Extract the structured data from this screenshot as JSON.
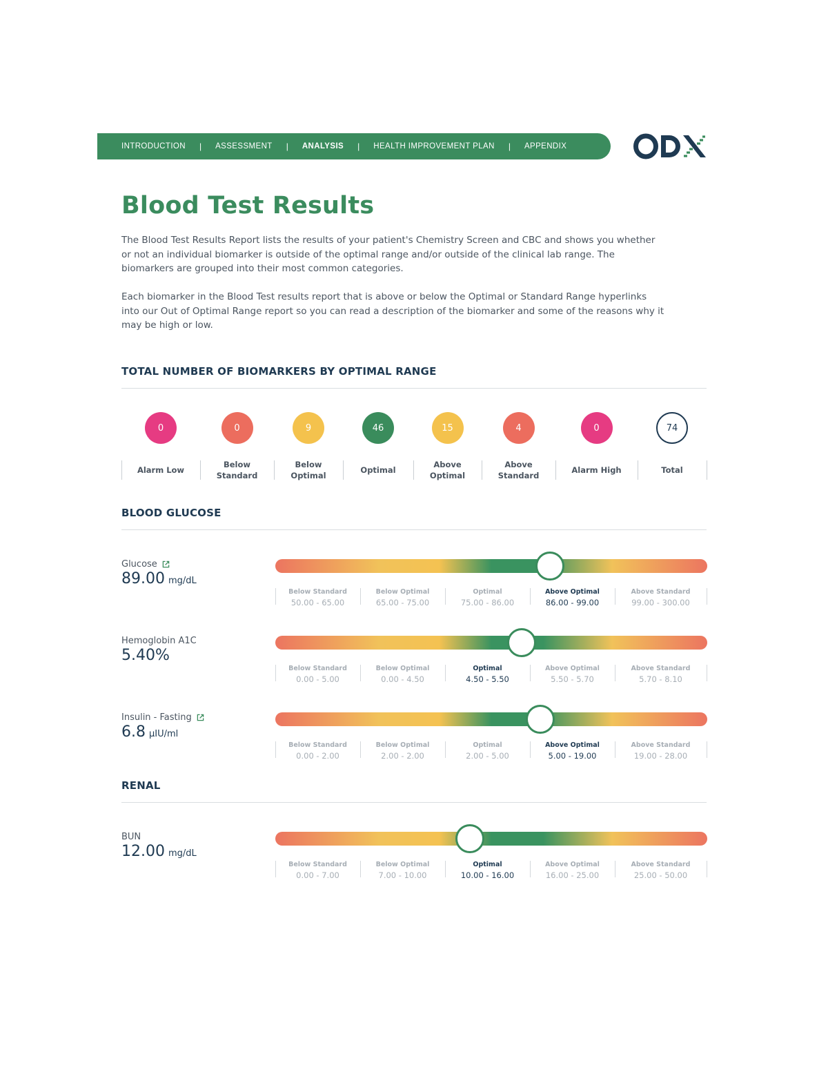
{
  "nav": {
    "items": [
      "INTRODUCTION",
      "ASSESSMENT",
      "ANALYSIS",
      "HEALTH IMPROVEMENT PLAN",
      "APPENDIX"
    ],
    "separator": "|",
    "active": "ANALYSIS"
  },
  "logo": {
    "text": "ODX"
  },
  "title": "Blood Test Results",
  "intro": {
    "p1": "The Blood Test Results Report lists the results of your patient's Chemistry Screen and CBC and shows you whether or not an individual biomarker is outside of the optimal range and/or outside of the clinical lab range. The biomarkers are grouped into their most common categories.",
    "p2": "Each biomarker in the Blood Test results report that is above or below the Optimal or Standard Range hyperlinks into our Out of Optimal Range report so you can read a description of the biomarker and some of the reasons why it may be high or low."
  },
  "summary": {
    "heading": "TOTAL NUMBER OF BIOMARKERS BY OPTIMAL RANGE",
    "categories": [
      {
        "label": "Alarm Low",
        "count": "0",
        "color": "#e63b82"
      },
      {
        "label": "Below Standard",
        "count": "0",
        "color": "#ec6d5e"
      },
      {
        "label": "Below Optimal",
        "count": "9",
        "color": "#f4c24d"
      },
      {
        "label": "Optimal",
        "count": "46",
        "color": "#3a8c5c"
      },
      {
        "label": "Above Optimal",
        "count": "15",
        "color": "#f4c24d"
      },
      {
        "label": "Above Standard",
        "count": "4",
        "color": "#ec6d5e"
      },
      {
        "label": "Alarm High",
        "count": "0",
        "color": "#e63b82"
      },
      {
        "label": "Total",
        "count": "74",
        "color": "#1f3a52"
      }
    ]
  },
  "sections": [
    {
      "heading": "BLOOD GLUCOSE",
      "biomarkers": [
        {
          "name": "Glucose",
          "link": true,
          "value": "89.00",
          "unit": "mg/dL",
          "position": 0.635,
          "ranges": [
            {
              "label": "Below Standard",
              "value": "50.00 - 65.00"
            },
            {
              "label": "Below Optimal",
              "value": "65.00 - 75.00"
            },
            {
              "label": "Optimal",
              "value": "75.00 - 86.00"
            },
            {
              "label": "Above Optimal",
              "value": "86.00 - 99.00",
              "current": true
            },
            {
              "label": "Above Standard",
              "value": "99.00 - 300.00"
            }
          ]
        },
        {
          "name": "Hemoglobin A1C",
          "link": false,
          "value": "5.40%",
          "unit": "",
          "position": 0.571,
          "ranges": [
            {
              "label": "Below Standard",
              "value": "0.00 - 5.00"
            },
            {
              "label": "Below Optimal",
              "value": "0.00 - 4.50"
            },
            {
              "label": "Optimal",
              "value": "4.50 - 5.50",
              "current": true
            },
            {
              "label": "Above Optimal",
              "value": "5.50 - 5.70"
            },
            {
              "label": "Above Standard",
              "value": "5.70 - 8.10"
            }
          ]
        },
        {
          "name": "Insulin - Fasting",
          "link": true,
          "value": "6.8",
          "unit": "µIU/ml",
          "position": 0.614,
          "ranges": [
            {
              "label": "Below Standard",
              "value": "0.00 - 2.00"
            },
            {
              "label": "Below Optimal",
              "value": "2.00 - 2.00"
            },
            {
              "label": "Optimal",
              "value": "2.00 - 5.00"
            },
            {
              "label": "Above Optimal",
              "value": "5.00 - 19.00",
              "current": true
            },
            {
              "label": "Above Standard",
              "value": "19.00 - 28.00"
            }
          ]
        }
      ]
    },
    {
      "heading": "RENAL",
      "biomarkers": [
        {
          "name": "BUN",
          "link": false,
          "value": "12.00",
          "unit": "mg/dL",
          "position": 0.451,
          "ranges": [
            {
              "label": "Below Standard",
              "value": "0.00 - 7.00"
            },
            {
              "label": "Below Optimal",
              "value": "7.00 - 10.00"
            },
            {
              "label": "Optimal",
              "value": "10.00 - 16.00",
              "current": true
            },
            {
              "label": "Above Optimal",
              "value": "16.00 - 25.00"
            },
            {
              "label": "Above Standard",
              "value": "25.00 - 50.00"
            }
          ]
        }
      ]
    }
  ]
}
